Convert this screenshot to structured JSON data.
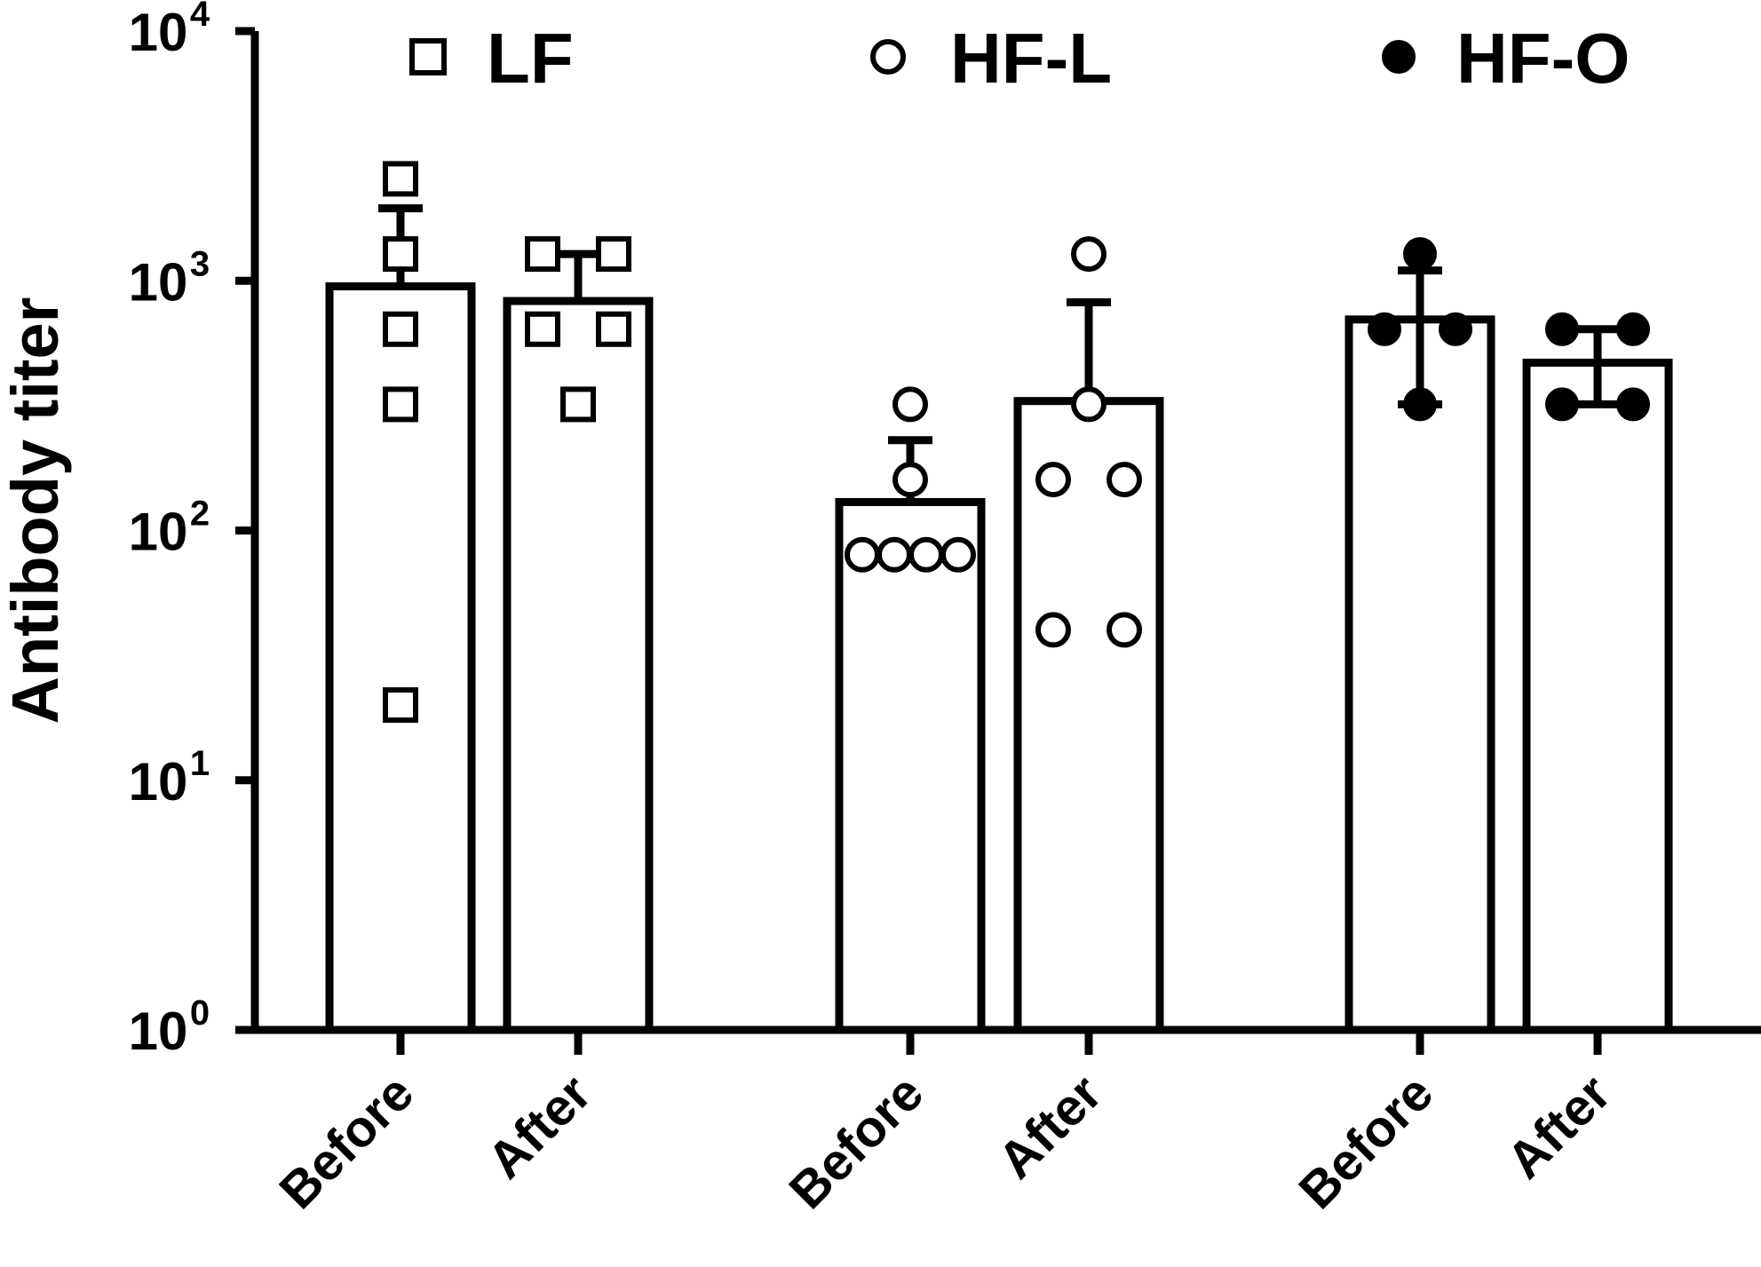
{
  "chart_data": {
    "type": "bar",
    "ylabel": "Antibody titer",
    "yscale": "log",
    "ylim": [
      1,
      10000
    ],
    "yticks": [
      {
        "base": "10",
        "exp": "0",
        "value": 1
      },
      {
        "base": "10",
        "exp": "1",
        "value": 10
      },
      {
        "base": "10",
        "exp": "2",
        "value": 100
      },
      {
        "base": "10",
        "exp": "3",
        "value": 1000
      },
      {
        "base": "10",
        "exp": "4",
        "value": 10000
      }
    ],
    "legend_position": "top",
    "series": [
      {
        "name": "LF",
        "marker": "open-square",
        "bars": [
          {
            "label": "Before",
            "mean": 950,
            "err_high": 1950,
            "points": [
              2560,
              1280,
              640,
              320,
              20
            ]
          },
          {
            "label": "After",
            "mean": 830,
            "err_high": 1280,
            "points": [
              1280,
              1280,
              640,
              640,
              320
            ]
          }
        ]
      },
      {
        "name": "HF-L",
        "marker": "open-circle",
        "bars": [
          {
            "label": "Before",
            "mean": 130,
            "err_high": 230,
            "points": [
              320,
              160,
              80,
              80,
              80,
              80
            ]
          },
          {
            "label": "After",
            "mean": 330,
            "err_high": 820,
            "points": [
              1280,
              320,
              160,
              160,
              40,
              40
            ]
          }
        ]
      },
      {
        "name": "HF-O",
        "marker": "filled-circle",
        "bars": [
          {
            "label": "Before",
            "mean": 700,
            "err_high": 1100,
            "err_low": 320,
            "points": [
              1280,
              640,
              640,
              320
            ]
          },
          {
            "label": "After",
            "mean": 470,
            "err_high": 640,
            "err_low": 320,
            "points": [
              640,
              640,
              320,
              320
            ]
          }
        ]
      }
    ]
  }
}
